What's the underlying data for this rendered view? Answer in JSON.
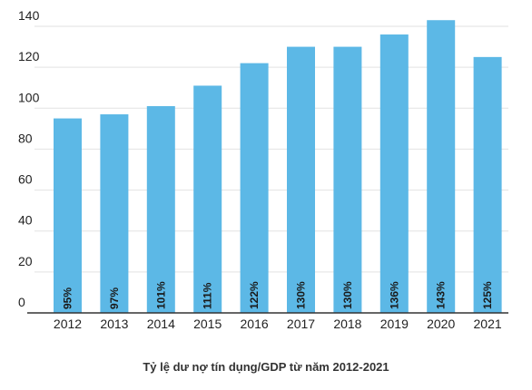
{
  "chart_data": {
    "type": "bar",
    "title": "Tỷ lệ dư nợ tín dụng/GDP từ năm 2012-2021",
    "xlabel": "",
    "ylabel": "",
    "categories": [
      "2012",
      "2013",
      "2014",
      "2015",
      "2016",
      "2017",
      "2018",
      "2019",
      "2020",
      "2021"
    ],
    "values": [
      95,
      97,
      101,
      111,
      122,
      130,
      130,
      136,
      143,
      125
    ],
    "data_labels": [
      "95%",
      "97%",
      "101%",
      "111%",
      "122%",
      "130%",
      "130%",
      "136%",
      "143%",
      "125%"
    ],
    "ylim": [
      0,
      140
    ],
    "yticks": [
      0,
      20,
      40,
      60,
      80,
      100,
      120,
      140
    ],
    "grid": true,
    "bar_color": "#5cb8e6"
  }
}
